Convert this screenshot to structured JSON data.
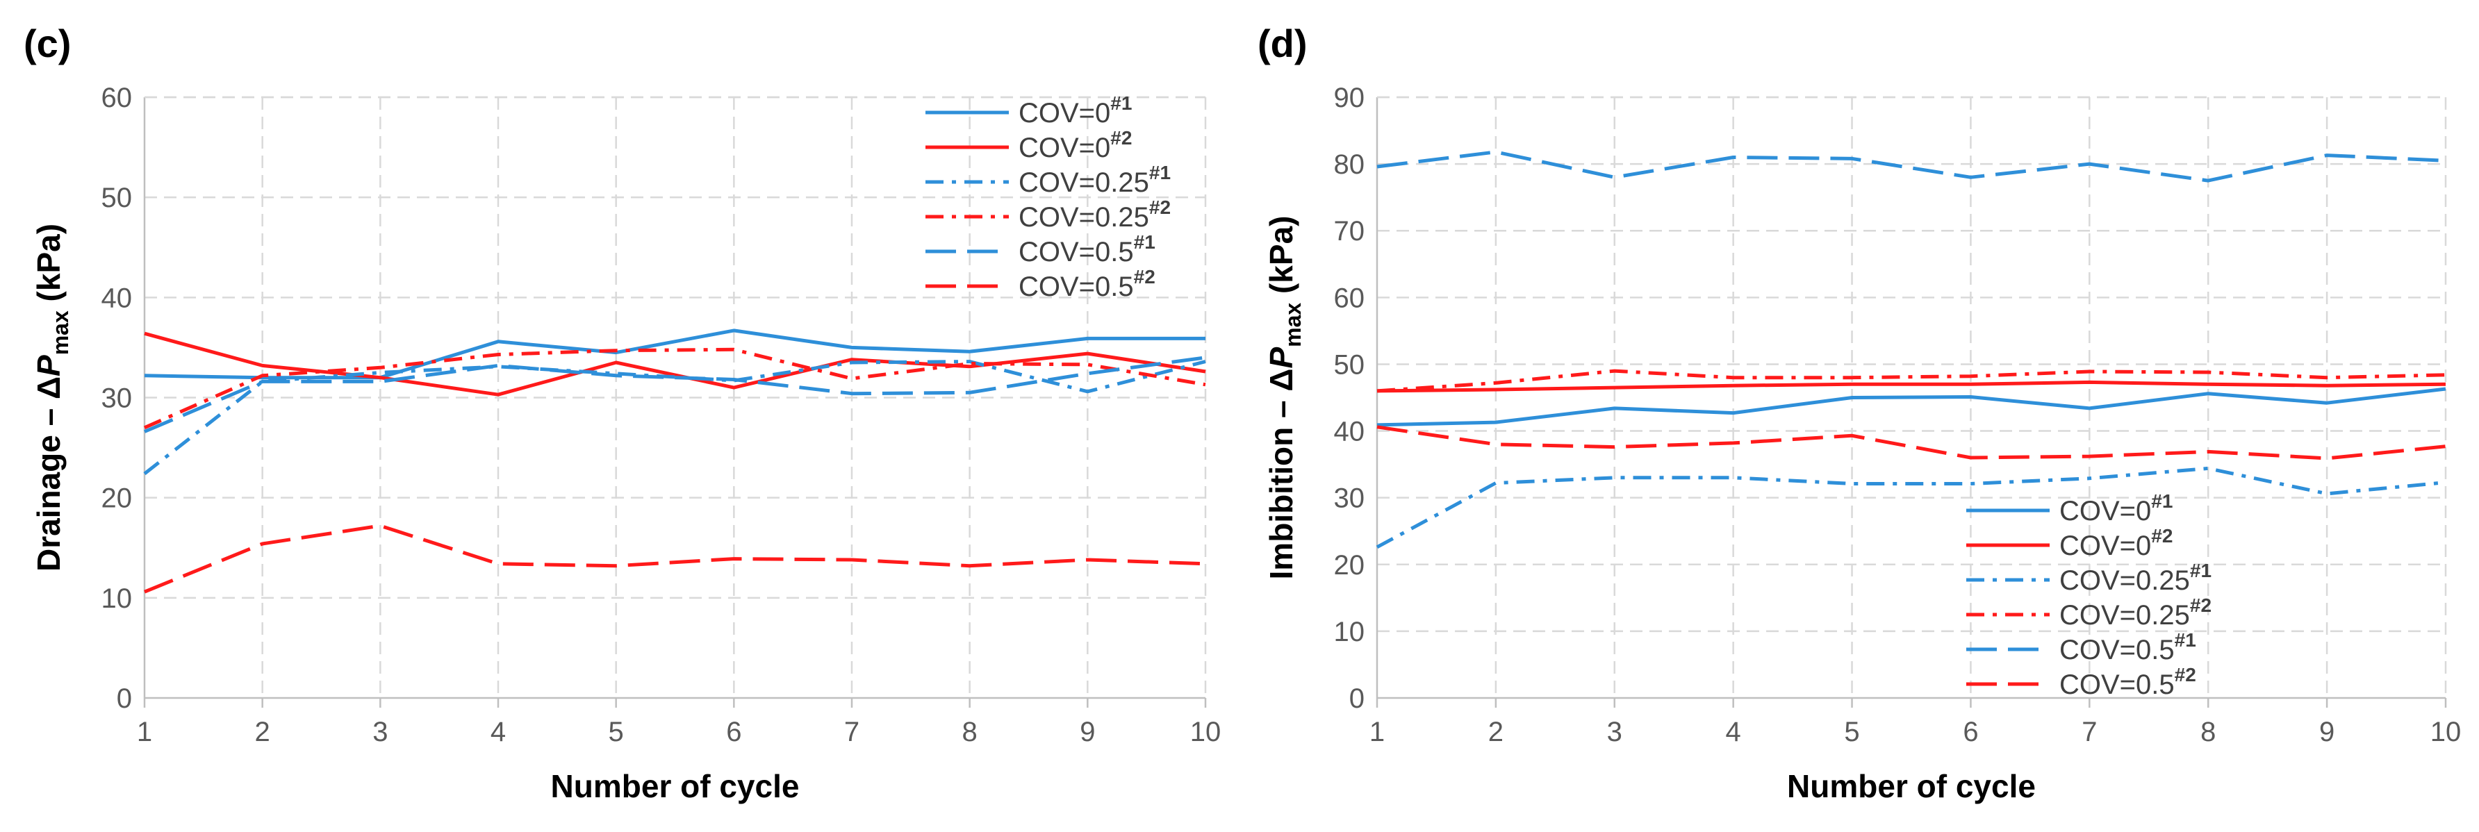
{
  "colors": {
    "blue": "#2E8FD9",
    "red": "#FF1A1A",
    "grid": "#D9D9D9",
    "axis": "#BFBFBF"
  },
  "legend_entries": [
    {
      "label": "COV=0",
      "sup": "#1",
      "color": "blue",
      "dash": "solid"
    },
    {
      "label": "COV=0",
      "sup": "#2",
      "color": "red",
      "dash": "solid"
    },
    {
      "label": "COV=0.25",
      "sup": "#1",
      "color": "blue",
      "dash": "dashdot"
    },
    {
      "label": "COV=0.25",
      "sup": "#2",
      "color": "red",
      "dash": "dashdot"
    },
    {
      "label": "COV=0.5",
      "sup": "#1",
      "color": "blue",
      "dash": "longdash"
    },
    {
      "label": "COV=0.5",
      "sup": "#2",
      "color": "red",
      "dash": "longdash"
    }
  ],
  "chart_data": [
    {
      "panel": "(c)",
      "type": "line",
      "xlabel": "Number of cycle",
      "ylabel_prefix": "Drainage – Δ",
      "ylabel_var": "P",
      "ylabel_sub": "max",
      "ylabel_unit": " (kPa)",
      "x": [
        1,
        2,
        3,
        4,
        5,
        6,
        7,
        8,
        9,
        10
      ],
      "xlim": [
        1,
        10
      ],
      "ylim": [
        0,
        60
      ],
      "yticks": [
        0,
        10,
        20,
        30,
        40,
        50,
        60
      ],
      "legend_position": "top-right",
      "series": [
        {
          "name": "COV=0#1",
          "values": [
            32.2,
            32.0,
            32.0,
            35.6,
            34.5,
            36.7,
            35.0,
            34.6,
            35.9,
            35.9
          ]
        },
        {
          "name": "COV=0#2",
          "values": [
            36.4,
            33.2,
            32.0,
            30.3,
            33.5,
            31.0,
            33.8,
            33.1,
            34.4,
            32.6
          ]
        },
        {
          "name": "COV=0.25#1",
          "values": [
            22.4,
            31.6,
            32.5,
            33.1,
            32.4,
            31.7,
            33.5,
            33.6,
            30.6,
            33.6
          ]
        },
        {
          "name": "COV=0.25#2",
          "values": [
            27.0,
            32.2,
            33.0,
            34.3,
            34.7,
            34.8,
            31.9,
            33.4,
            33.3,
            31.3
          ]
        },
        {
          "name": "COV=0.5#1",
          "values": [
            26.6,
            31.6,
            31.6,
            33.2,
            32.2,
            31.8,
            30.4,
            30.5,
            32.4,
            34.0
          ]
        },
        {
          "name": "COV=0.5#2",
          "values": [
            10.6,
            15.4,
            17.2,
            13.4,
            13.2,
            13.9,
            13.8,
            13.2,
            13.8,
            13.4
          ]
        }
      ]
    },
    {
      "panel": "(d)",
      "type": "line",
      "xlabel": "Number of cycle",
      "ylabel_prefix": "Imbibition – Δ",
      "ylabel_var": "P",
      "ylabel_sub": "max",
      "ylabel_unit": " (kPa)",
      "x": [
        1,
        2,
        3,
        4,
        5,
        6,
        7,
        8,
        9,
        10
      ],
      "xlim": [
        1,
        10
      ],
      "ylim": [
        0,
        90
      ],
      "yticks": [
        0,
        10,
        20,
        30,
        40,
        50,
        60,
        70,
        80,
        90
      ],
      "legend_position": "bottom-center",
      "series": [
        {
          "name": "COV=0#1",
          "values": [
            40.9,
            41.3,
            43.4,
            42.7,
            45.0,
            45.1,
            43.4,
            45.6,
            44.2,
            46.3
          ]
        },
        {
          "name": "COV=0#2",
          "values": [
            46.0,
            46.2,
            46.5,
            46.8,
            47.0,
            47.0,
            47.3,
            47.0,
            46.8,
            47.0
          ]
        },
        {
          "name": "COV=0.25#1",
          "values": [
            22.6,
            32.2,
            33.0,
            33.0,
            32.1,
            32.1,
            32.9,
            34.4,
            30.6,
            32.3
          ]
        },
        {
          "name": "COV=0.25#2",
          "values": [
            46.0,
            47.2,
            49.0,
            48.0,
            48.0,
            48.2,
            48.9,
            48.8,
            48.0,
            48.4
          ]
        },
        {
          "name": "COV=0.5#1",
          "values": [
            79.6,
            81.8,
            78.0,
            81.0,
            80.8,
            78.0,
            80.0,
            77.5,
            81.3,
            80.5
          ]
        },
        {
          "name": "COV=0.5#2",
          "values": [
            40.6,
            38.0,
            37.6,
            38.2,
            39.3,
            36.0,
            36.2,
            36.9,
            35.9,
            37.7
          ]
        }
      ]
    }
  ]
}
